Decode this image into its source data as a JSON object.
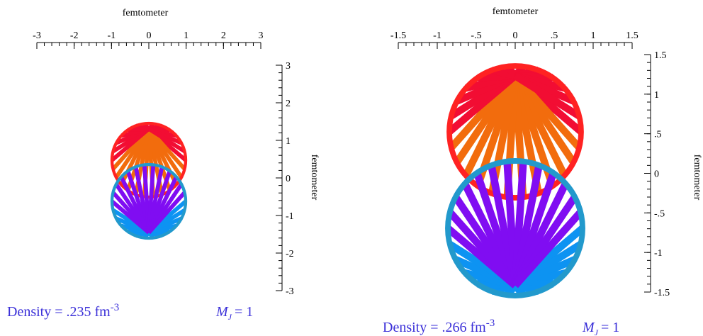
{
  "chart_data": [
    {
      "type": "density-plot",
      "xlabel": "femtometer",
      "ylabel": "femtometer",
      "xlim": [
        -3,
        3
      ],
      "ylim": [
        -3,
        3
      ],
      "xticks": [
        -3,
        -2,
        -1,
        0,
        1,
        2,
        3
      ],
      "yticks": [
        -3,
        -2,
        -1,
        0,
        1,
        2,
        3
      ],
      "density_text": "Density = .235 fm",
      "density_exponent": "-3",
      "m_symbol": "M",
      "m_subscript": "J",
      "m_text": "= 1"
    },
    {
      "type": "density-plot",
      "xlabel": "femtometer",
      "ylabel": "femtometer",
      "xlim": [
        -1.5,
        1.5
      ],
      "ylim": [
        -1.5,
        1.5
      ],
      "xticks": [
        -1.5,
        -1,
        {
          "value": -0.5,
          "label": "-.5"
        },
        0,
        {
          "value": 0.5,
          "label": ".5"
        },
        1,
        1.5
      ],
      "yticks": [
        -1.5,
        -1,
        {
          "value": -0.5,
          "label": "-.5"
        },
        0,
        {
          "value": 0.5,
          "label": ".5"
        },
        1,
        1.5
      ],
      "density_text": "Density = .266 fm",
      "density_exponent": "-3",
      "m_symbol": "M",
      "m_subscript": "J",
      "m_text": "= 1"
    }
  ]
}
